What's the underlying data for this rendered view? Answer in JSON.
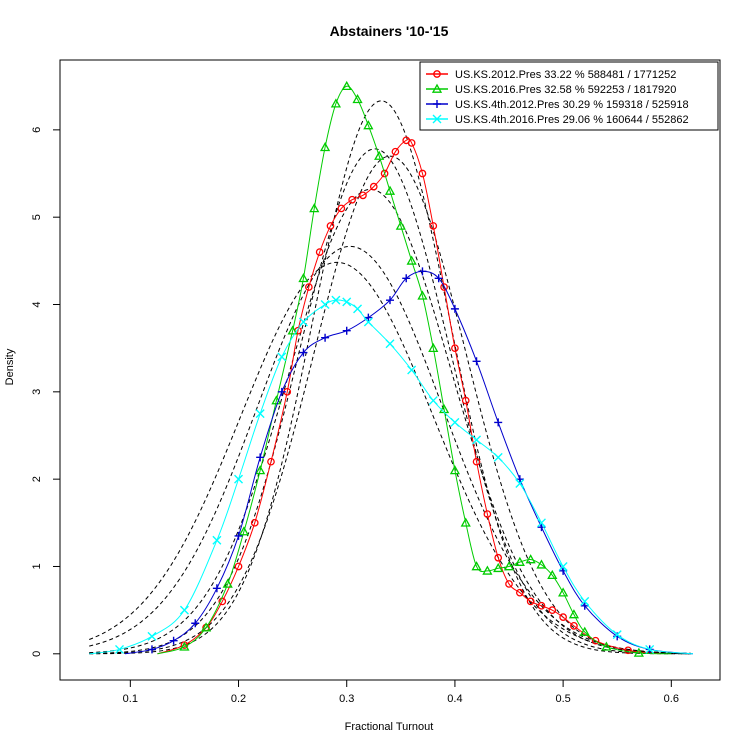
{
  "chart_data": {
    "type": "line",
    "title": "Abstainers '10-'15",
    "xlabel": "Fractional Turnout",
    "ylabel": "Density",
    "xlim": [
      0.035,
      0.645
    ],
    "ylim": [
      -0.3,
      6.8
    ],
    "xticks": [
      0.1,
      0.2,
      0.3,
      0.4,
      0.5,
      0.6
    ],
    "xtick_labels": [
      "0.1",
      "0.2",
      "0.3",
      "0.4",
      "0.5",
      "0.6"
    ],
    "yticks": [
      0,
      1,
      2,
      3,
      4,
      5,
      6
    ],
    "ytick_labels": [
      "0",
      "1",
      "2",
      "3",
      "4",
      "5",
      "6"
    ],
    "grid": false,
    "legend_position": "top-right",
    "series": [
      {
        "name": "US.KS.2012.Pres 33.22 % 588481 / 1771252",
        "color": "#ff0000",
        "marker": "circle",
        "x": [
          0.125,
          0.15,
          0.17,
          0.185,
          0.2,
          0.215,
          0.23,
          0.245,
          0.255,
          0.265,
          0.275,
          0.285,
          0.295,
          0.305,
          0.315,
          0.325,
          0.335,
          0.345,
          0.355,
          0.36,
          0.37,
          0.38,
          0.39,
          0.4,
          0.41,
          0.42,
          0.43,
          0.44,
          0.45,
          0.46,
          0.47,
          0.48,
          0.49,
          0.5,
          0.51,
          0.53,
          0.56,
          0.59
        ],
        "y": [
          0.0,
          0.1,
          0.3,
          0.6,
          1.0,
          1.5,
          2.2,
          3.0,
          3.7,
          4.2,
          4.6,
          4.9,
          5.1,
          5.2,
          5.25,
          5.35,
          5.5,
          5.75,
          5.88,
          5.85,
          5.5,
          4.9,
          4.2,
          3.5,
          2.9,
          2.2,
          1.6,
          1.1,
          0.8,
          0.7,
          0.6,
          0.55,
          0.5,
          0.42,
          0.32,
          0.15,
          0.04,
          0.0
        ]
      },
      {
        "name": "US.KS.2016.Pres 32.58 % 592253 / 1817920",
        "color": "#00cc00",
        "marker": "triangle",
        "x": [
          0.125,
          0.15,
          0.17,
          0.19,
          0.205,
          0.22,
          0.235,
          0.25,
          0.26,
          0.27,
          0.28,
          0.29,
          0.3,
          0.31,
          0.32,
          0.33,
          0.34,
          0.35,
          0.36,
          0.37,
          0.38,
          0.39,
          0.4,
          0.41,
          0.42,
          0.43,
          0.44,
          0.45,
          0.46,
          0.47,
          0.48,
          0.49,
          0.5,
          0.51,
          0.52,
          0.54,
          0.57,
          0.6
        ],
        "y": [
          0.0,
          0.08,
          0.3,
          0.8,
          1.4,
          2.1,
          2.9,
          3.7,
          4.3,
          5.1,
          5.8,
          6.3,
          6.5,
          6.35,
          6.05,
          5.7,
          5.3,
          4.9,
          4.5,
          4.1,
          3.5,
          2.8,
          2.1,
          1.5,
          1.0,
          0.95,
          0.98,
          1.0,
          1.05,
          1.08,
          1.02,
          0.9,
          0.7,
          0.45,
          0.25,
          0.08,
          0.01,
          0.0
        ]
      },
      {
        "name": "US.KS.4th.2012.Pres 30.29 % 159318 / 525918",
        "color": "#0000cc",
        "marker": "plus",
        "x": [
          0.095,
          0.12,
          0.14,
          0.16,
          0.18,
          0.2,
          0.22,
          0.24,
          0.26,
          0.28,
          0.3,
          0.32,
          0.34,
          0.355,
          0.37,
          0.385,
          0.4,
          0.42,
          0.44,
          0.46,
          0.48,
          0.5,
          0.52,
          0.55,
          0.58,
          0.62
        ],
        "y": [
          0.0,
          0.05,
          0.15,
          0.35,
          0.75,
          1.35,
          2.25,
          3.0,
          3.45,
          3.62,
          3.7,
          3.85,
          4.05,
          4.3,
          4.38,
          4.3,
          3.95,
          3.35,
          2.65,
          2.0,
          1.45,
          0.95,
          0.55,
          0.2,
          0.05,
          0.0
        ]
      },
      {
        "name": "US.KS.4th.2016.Pres 29.06 % 160644 / 552862",
        "color": "#00ffff",
        "marker": "cross",
        "x": [
          0.062,
          0.09,
          0.12,
          0.15,
          0.18,
          0.2,
          0.22,
          0.24,
          0.26,
          0.28,
          0.29,
          0.3,
          0.31,
          0.32,
          0.34,
          0.36,
          0.38,
          0.4,
          0.42,
          0.44,
          0.46,
          0.48,
          0.5,
          0.52,
          0.55,
          0.58,
          0.62
        ],
        "y": [
          0.0,
          0.05,
          0.2,
          0.5,
          1.3,
          2.0,
          2.75,
          3.4,
          3.8,
          4.0,
          4.05,
          4.03,
          3.95,
          3.8,
          3.55,
          3.25,
          2.9,
          2.65,
          2.45,
          2.25,
          1.95,
          1.5,
          1.0,
          0.6,
          0.22,
          0.05,
          0.0
        ]
      }
    ],
    "reference_curves": [
      {
        "mean": 0.332,
        "sd": 0.063,
        "style": "dashed",
        "color": "#000000"
      },
      {
        "mean": 0.326,
        "sd": 0.069,
        "style": "dashed",
        "color": "#000000"
      },
      {
        "mean": 0.303,
        "sd": 0.0855,
        "style": "dashed",
        "color": "#000000"
      },
      {
        "mean": 0.291,
        "sd": 0.089,
        "style": "dashed",
        "color": "#000000"
      },
      {
        "mean": 0.322,
        "sd": 0.075,
        "style": "dashed",
        "color": "#000000"
      },
      {
        "mean": 0.34,
        "sd": 0.07,
        "style": "dashed",
        "color": "#000000"
      }
    ]
  }
}
